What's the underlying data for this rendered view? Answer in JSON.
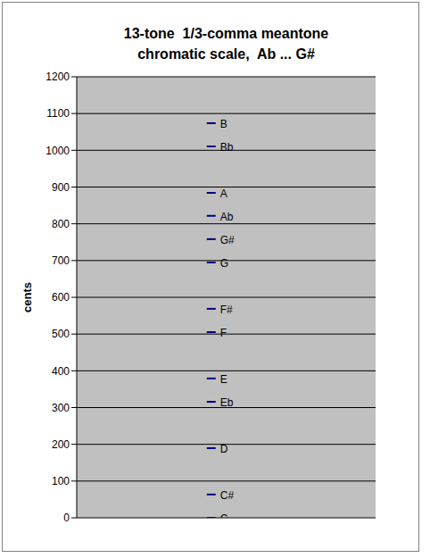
{
  "chart_data": {
    "type": "scatter",
    "title": "13-tone  1/3-comma meantone\nchromatic scale,  Ab ... G#",
    "y_label": "cents",
    "categories": [
      "C",
      "C#",
      "D",
      "Eb",
      "E",
      "F",
      "F#",
      "G",
      "G#",
      "Ab",
      "A",
      "Bb",
      "B"
    ],
    "values": [
      0,
      63.5,
      189.6,
      315.6,
      379.2,
      505.2,
      568.7,
      694.8,
      758.3,
      821.9,
      884.4,
      1010.4,
      1073.9
    ],
    "color": "#000080",
    "marker": "dash",
    "ylim": [
      0,
      1200
    ],
    "yticks": [
      0,
      100,
      200,
      300,
      400,
      500,
      600,
      700,
      800,
      900,
      1000,
      1100,
      1200
    ],
    "grid": true,
    "tick_labels": "y"
  }
}
